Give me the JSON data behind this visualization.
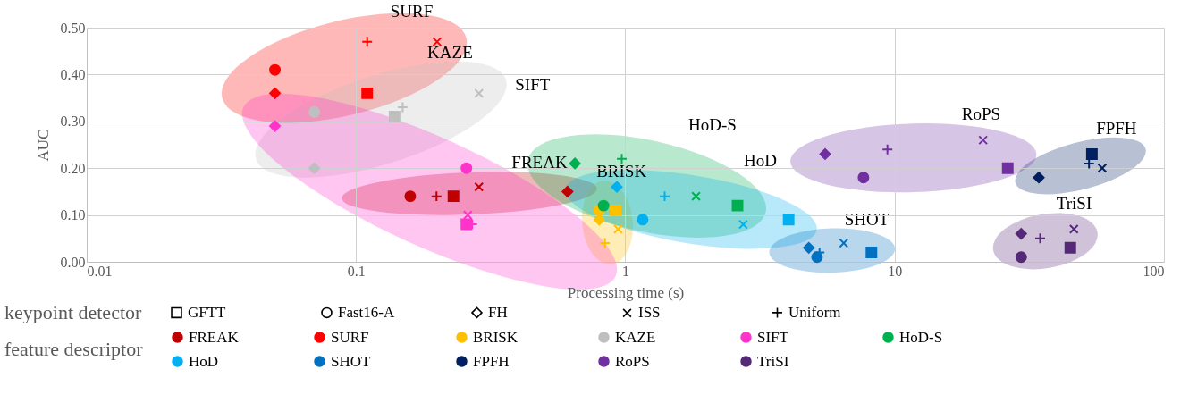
{
  "chart_data": {
    "type": "scatter",
    "xlabel": "Processing time (s)",
    "ylabel": "AUC",
    "log": "x",
    "grid": true,
    "legend": "bottom",
    "xlim": [
      0.01,
      100
    ],
    "xticks": [
      0.01,
      0.1,
      1,
      10,
      100
    ],
    "ylim": [
      0,
      0.5
    ],
    "yticks": [
      {
        "value": 0,
        "label": "0.00"
      },
      {
        "value": 0.1,
        "label": "0.10"
      },
      {
        "value": 0.2,
        "label": "0.20"
      },
      {
        "value": 0.3,
        "label": "0.30"
      },
      {
        "value": 0.4,
        "label": "0.40"
      },
      {
        "value": 0.5,
        "label": "0.50"
      }
    ],
    "legend_title": [
      "keypoint detector",
      "feature descriptor"
    ],
    "series": [
      {
        "name": "GFTT",
        "color": "#000000",
        "marker": "square"
      },
      {
        "name": "Fast16-A",
        "color": "#000000",
        "marker": "circle"
      },
      {
        "name": "FH",
        "color": "#000000",
        "marker": "diamond"
      },
      {
        "name": "ISS",
        "color": "#000000",
        "marker": "cross"
      },
      {
        "name": "Uniform",
        "color": "#000000",
        "marker": "plus"
      },
      {
        "name": "FREAK",
        "color": "#c00000",
        "marker": [
          "square",
          "circle",
          "diamond",
          "cross",
          "plus"
        ],
        "x": [
          0.23,
          0.159,
          0.61,
          0.286,
          0.199
        ],
        "values": [
          0.14,
          0.14,
          0.15,
          0.16,
          0.14
        ]
      },
      {
        "name": "SURF",
        "color": "#ff0000",
        "marker": [
          "square",
          "circle",
          "diamond",
          "cross",
          "plus"
        ],
        "x": [
          0.11,
          0.05,
          0.05,
          0.2,
          0.11
        ],
        "values": [
          0.36,
          0.41,
          0.36,
          0.47,
          0.47
        ]
      },
      {
        "name": "BRISK",
        "color": "#ffc000",
        "marker": [
          "square",
          "circle",
          "diamond",
          "cross",
          "plus"
        ],
        "x": [
          0.92,
          0.8,
          0.8,
          0.94,
          0.84
        ],
        "values": [
          0.11,
          0.11,
          0.09,
          0.07,
          0.04
        ]
      },
      {
        "name": "KAZE",
        "color": "#bfbfbf",
        "marker": [
          "square",
          "circle",
          "diamond",
          "cross",
          "plus"
        ],
        "x": [
          0.139,
          0.07,
          0.07,
          0.286,
          0.149
        ],
        "values": [
          0.31,
          0.32,
          0.2,
          0.36,
          0.33
        ]
      },
      {
        "name": "SIFT",
        "color": "#ff33cc",
        "marker": [
          "square",
          "circle",
          "diamond",
          "cross",
          "plus"
        ],
        "x": [
          0.257,
          0.257,
          0.05,
          0.26,
          0.27
        ],
        "values": [
          0.08,
          0.2,
          0.29,
          0.1,
          0.08
        ]
      },
      {
        "name": "HoD-S",
        "color": "#00b050",
        "marker": [
          "square",
          "circle",
          "diamond",
          "cross",
          "plus"
        ],
        "x": [
          2.61,
          0.83,
          0.65,
          1.83,
          0.97
        ],
        "values": [
          0.12,
          0.12,
          0.21,
          0.14,
          0.22
        ]
      },
      {
        "name": "HoD",
        "color": "#00b0f0",
        "marker": [
          "square",
          "circle",
          "diamond",
          "cross",
          "plus"
        ],
        "x": [
          4.04,
          1.16,
          0.93,
          2.74,
          1.4
        ],
        "values": [
          0.09,
          0.09,
          0.16,
          0.08,
          0.14
        ]
      },
      {
        "name": "SHOT",
        "color": "#0070c0",
        "marker": [
          "square",
          "circle",
          "diamond",
          "cross",
          "plus"
        ],
        "x": [
          8.2,
          5.15,
          4.8,
          6.47,
          5.26
        ],
        "values": [
          0.02,
          0.01,
          0.03,
          0.04,
          0.02
        ]
      },
      {
        "name": "FPFH",
        "color": "#002060",
        "marker": [
          "square",
          "diamond",
          "cross",
          "plus"
        ],
        "x": [
          54,
          34.3,
          59,
          52.7
        ],
        "values": [
          0.23,
          0.18,
          0.2,
          0.21
        ]
      },
      {
        "name": "RoPS",
        "color": "#7030a0",
        "marker": [
          "square",
          "circle",
          "diamond",
          "cross",
          "plus"
        ],
        "x": [
          26.3,
          7.66,
          5.52,
          21.3,
          9.4
        ],
        "values": [
          0.2,
          0.18,
          0.23,
          0.26,
          0.24
        ]
      },
      {
        "name": "TriSI",
        "color": "#552878",
        "marker": [
          "square",
          "circle",
          "diamond",
          "cross",
          "plus"
        ],
        "x": [
          44.9,
          29.5,
          29.5,
          46.3,
          34.7
        ],
        "values": [
          0.03,
          0.01,
          0.06,
          0.07,
          0.05
        ]
      }
    ],
    "annotations": [
      "FREAK",
      "SURF",
      "BRISK",
      "KAZE",
      "SIFT",
      "HoD-S",
      "HoD",
      "SHOT",
      "FPFH",
      "RoPS",
      "TriSI"
    ]
  }
}
